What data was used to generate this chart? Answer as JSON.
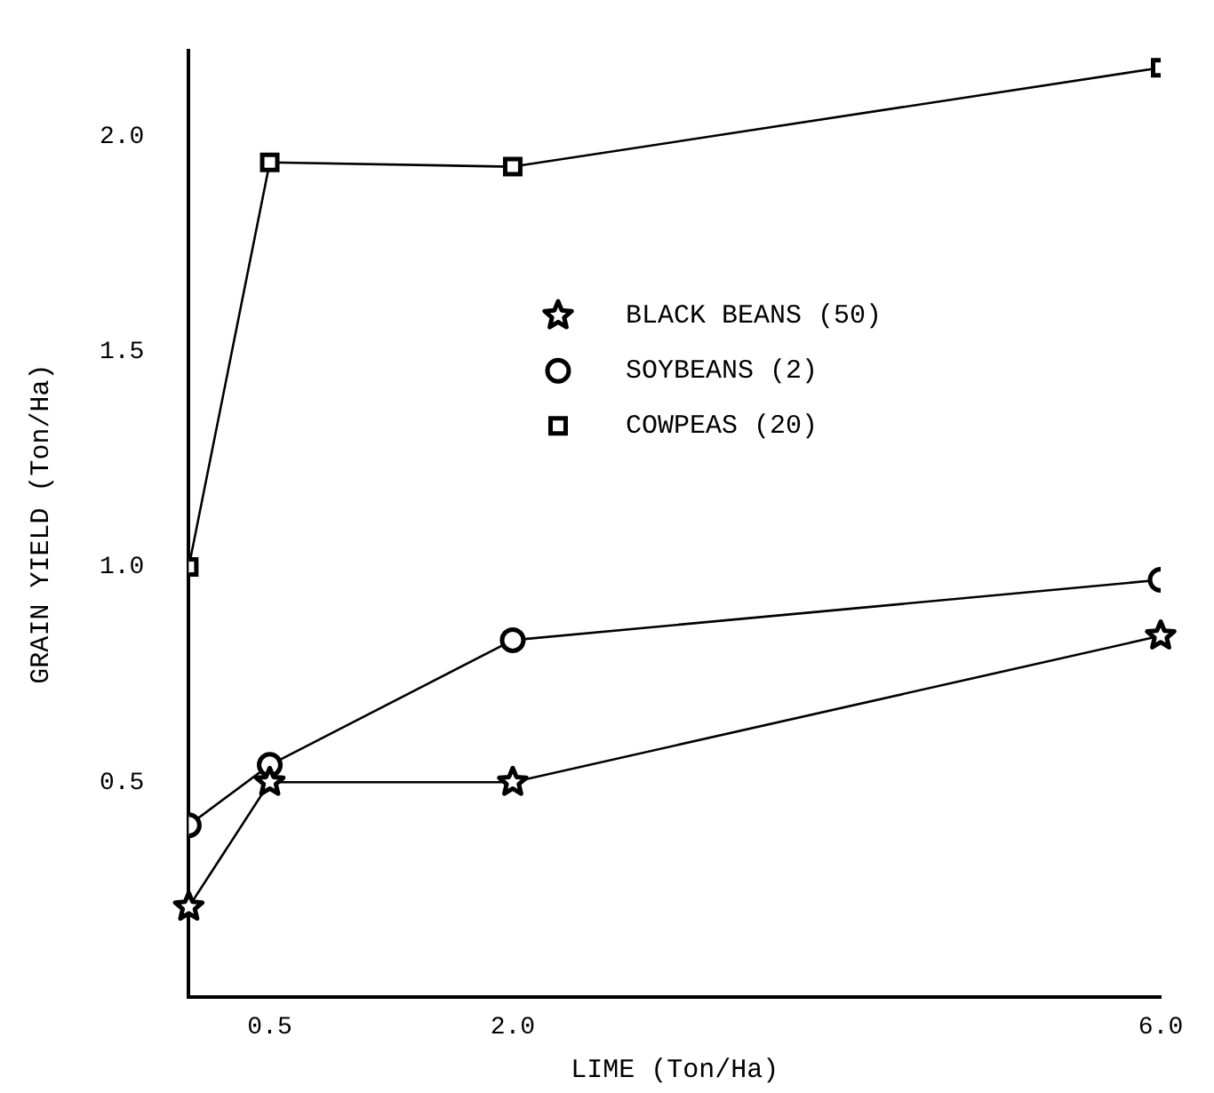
{
  "chart_data": {
    "type": "line",
    "xlabel": "LIME (Ton/Ha)",
    "ylabel": "GRAIN YIELD (Ton/Ha)",
    "x": [
      0,
      0.5,
      2.0,
      6.0
    ],
    "series": [
      {
        "name": "BLACK BEANS (50)",
        "color": "#000000",
        "marker": "star",
        "values": [
          0.21,
          0.5,
          0.5,
          0.84
        ]
      },
      {
        "name": "SOYBEANS (2)",
        "color": "#000000",
        "marker": "circle",
        "values": [
          0.4,
          0.54,
          0.83,
          0.97
        ]
      },
      {
        "name": "COWPEAS (20)",
        "color": "#000000",
        "marker": "square",
        "values": [
          1.0,
          1.94,
          1.93,
          2.16
        ]
      }
    ],
    "xlim": [
      0,
      6.0
    ],
    "xticks": [
      {
        "value": 0.5,
        "label": "0.5"
      },
      {
        "value": 2,
        "label": "2.0"
      },
      {
        "value": 6,
        "label": "6.0"
      }
    ],
    "ylim": [
      0,
      2.2
    ],
    "yticks": [
      {
        "value": 0.5,
        "label": "0.5"
      },
      {
        "value": 1,
        "label": "1.0"
      },
      {
        "value": 1.5,
        "label": "1.5"
      },
      {
        "value": 2,
        "label": "2.0"
      }
    ],
    "grid": false,
    "legend": "center"
  }
}
